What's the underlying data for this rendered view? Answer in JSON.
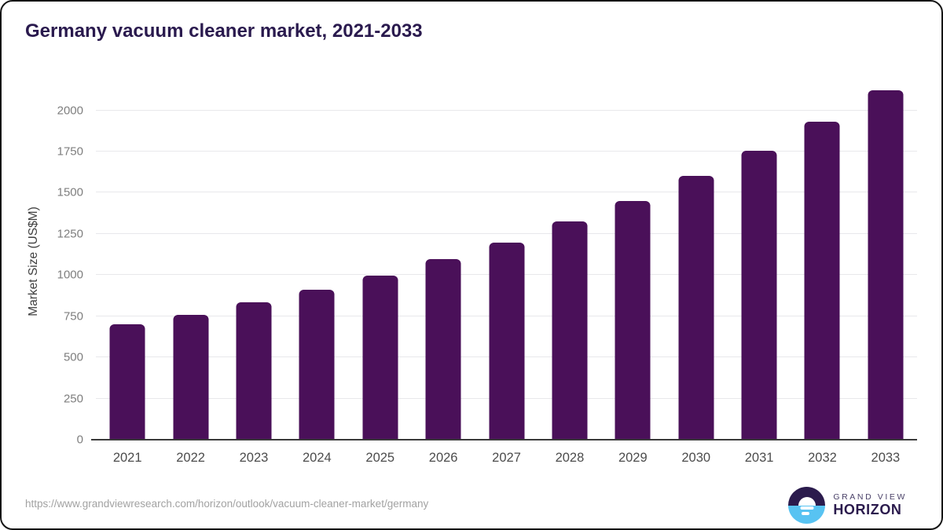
{
  "header": {
    "title": "Germany vacuum cleaner market, 2021-2033"
  },
  "chart_data": {
    "type": "bar",
    "title": "Germany vacuum cleaner market, 2021-2033",
    "categories": [
      "2021",
      "2022",
      "2023",
      "2024",
      "2025",
      "2026",
      "2027",
      "2028",
      "2029",
      "2030",
      "2031",
      "2032",
      "2033"
    ],
    "values": [
      700,
      760,
      835,
      910,
      995,
      1095,
      1195,
      1325,
      1450,
      1600,
      1755,
      1930,
      2120
    ],
    "xlabel": "",
    "ylabel": "Market Size (US$M)",
    "ylim": [
      0,
      2160
    ],
    "yticks": [
      0,
      250,
      500,
      750,
      1000,
      1250,
      1500,
      1750,
      2000
    ],
    "grid": "horizontal",
    "legend": "none",
    "bar_color": "#4a1059"
  },
  "footer": {
    "source_url": "https://www.grandviewresearch.com/horizon/outlook/vacuum-cleaner-market/germany",
    "brand": {
      "name_line1": "GRAND VIEW",
      "name_line2": "HORIZON",
      "icon": "horizon-sunrise-icon",
      "color_dark": "#2b1b4d",
      "color_blue": "#58c3f2"
    }
  },
  "colors": {
    "bar": "#4a1059",
    "title": "#2a1a4e",
    "gridline": "#e8e8eb",
    "axis_line": "#3a3a3a",
    "y_tick_label": "#7e7e7e",
    "x_tick_label": "#4c4c4c",
    "source_url": "#a2a2a2"
  }
}
